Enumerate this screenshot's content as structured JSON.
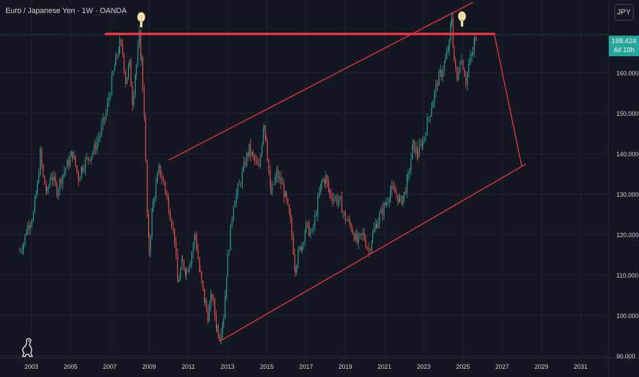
{
  "header": {
    "title": "Euro / Japanese Yen · 1W · OANDA"
  },
  "toolbar": {
    "currency_label": "JPY"
  },
  "price_badge": {
    "price": "169.424",
    "countdown": "4d 10h"
  },
  "colors": {
    "background": "#131722",
    "up": "#26a69a",
    "down": "#ef5350",
    "drawing": "#f23645",
    "grid": "#1f2330",
    "text": "#d1d4dc"
  },
  "icons": {
    "markers": "hand-pointing-down-icon",
    "logo": "dino-logo-icon"
  },
  "chart_data": {
    "type": "candlestick",
    "symbol": "Euro / Japanese Yen",
    "interval": "1W",
    "exchange": "OANDA",
    "last_price": 169.424,
    "y_ticks": [
      "90.000",
      "100.000",
      "110.000",
      "120.000",
      "130.000",
      "140.000",
      "150.000",
      "160.000"
    ],
    "x_ticks": [
      "2003",
      "2005",
      "2007",
      "2009",
      "2011",
      "2013",
      "2015",
      "2017",
      "2019",
      "2021",
      "2023",
      "2025",
      "2027",
      "2029",
      "2031"
    ],
    "ylim": [
      89.5,
      178
    ],
    "xlim": [
      2001.4,
      2032.4
    ],
    "grid": true,
    "price_path": [
      [
        2002.4,
        116
      ],
      [
        2002.6,
        118
      ],
      [
        2002.8,
        122
      ],
      [
        2003.1,
        125
      ],
      [
        2003.3,
        132
      ],
      [
        2003.45,
        140
      ],
      [
        2003.6,
        134
      ],
      [
        2003.8,
        130
      ],
      [
        2004.0,
        135
      ],
      [
        2004.3,
        131
      ],
      [
        2004.6,
        135
      ],
      [
        2004.9,
        138
      ],
      [
        2005.1,
        140
      ],
      [
        2005.4,
        134
      ],
      [
        2005.6,
        137
      ],
      [
        2005.9,
        139
      ],
      [
        2006.2,
        141
      ],
      [
        2006.5,
        145
      ],
      [
        2006.8,
        150
      ],
      [
        2007.1,
        158
      ],
      [
        2007.3,
        163
      ],
      [
        2007.5,
        167
      ],
      [
        2007.65,
        165
      ],
      [
        2007.8,
        158
      ],
      [
        2008.0,
        162
      ],
      [
        2008.15,
        153
      ],
      [
        2008.35,
        162
      ],
      [
        2008.5,
        169
      ],
      [
        2008.6,
        163
      ],
      [
        2008.75,
        150
      ],
      [
        2008.9,
        125
      ],
      [
        2009.0,
        116
      ],
      [
        2009.2,
        128
      ],
      [
        2009.5,
        136
      ],
      [
        2009.75,
        133
      ],
      [
        2010.0,
        127
      ],
      [
        2010.3,
        119
      ],
      [
        2010.45,
        108
      ],
      [
        2010.7,
        113
      ],
      [
        2010.9,
        111
      ],
      [
        2011.1,
        114
      ],
      [
        2011.35,
        120
      ],
      [
        2011.6,
        110
      ],
      [
        2011.85,
        103
      ],
      [
        2012.0,
        100
      ],
      [
        2012.2,
        105
      ],
      [
        2012.45,
        97
      ],
      [
        2012.6,
        95
      ],
      [
        2012.8,
        100
      ],
      [
        2013.0,
        114
      ],
      [
        2013.3,
        128
      ],
      [
        2013.6,
        132
      ],
      [
        2013.9,
        138
      ],
      [
        2014.1,
        141
      ],
      [
        2014.3,
        139
      ],
      [
        2014.6,
        136
      ],
      [
        2014.85,
        148
      ],
      [
        2014.95,
        144
      ],
      [
        2015.2,
        130
      ],
      [
        2015.5,
        135
      ],
      [
        2015.8,
        132
      ],
      [
        2016.0,
        128
      ],
      [
        2016.2,
        123
      ],
      [
        2016.45,
        112
      ],
      [
        2016.6,
        115
      ],
      [
        2016.8,
        118
      ],
      [
        2017.0,
        122
      ],
      [
        2017.3,
        120
      ],
      [
        2017.6,
        128
      ],
      [
        2017.8,
        133
      ],
      [
        2018.0,
        134
      ],
      [
        2018.2,
        130
      ],
      [
        2018.5,
        129
      ],
      [
        2018.75,
        128
      ],
      [
        2019.0,
        124
      ],
      [
        2019.3,
        122
      ],
      [
        2019.6,
        118
      ],
      [
        2019.9,
        120
      ],
      [
        2020.2,
        116
      ],
      [
        2020.4,
        120
      ],
      [
        2020.6,
        123
      ],
      [
        2020.9,
        126
      ],
      [
        2021.1,
        128
      ],
      [
        2021.3,
        131
      ],
      [
        2021.6,
        130
      ],
      [
        2021.8,
        128
      ],
      [
        2022.0,
        130
      ],
      [
        2022.2,
        134
      ],
      [
        2022.45,
        142
      ],
      [
        2022.7,
        140
      ],
      [
        2022.95,
        143
      ],
      [
        2023.1,
        146
      ],
      [
        2023.4,
        152
      ],
      [
        2023.7,
        158
      ],
      [
        2023.9,
        160
      ],
      [
        2024.1,
        163
      ],
      [
        2024.3,
        167
      ],
      [
        2024.42,
        174
      ],
      [
        2024.55,
        163
      ],
      [
        2024.7,
        158
      ],
      [
        2024.85,
        164
      ],
      [
        2025.0,
        162
      ],
      [
        2025.15,
        158
      ],
      [
        2025.3,
        162
      ],
      [
        2025.5,
        165
      ],
      [
        2025.6,
        168
      ],
      [
        2025.68,
        169.4
      ]
    ],
    "drawings": {
      "horizontal_resistance": {
        "from": [
          2006.8,
          169.6
        ],
        "to": [
          2026.6,
          169.6
        ]
      },
      "channel_upper": {
        "from": [
          2010.0,
          138.4
        ],
        "to": [
          2025.5,
          177.4
        ]
      },
      "channel_lower": {
        "from": [
          2012.6,
          93.6
        ],
        "to": [
          2028.2,
          137.4
        ]
      },
      "projection": {
        "from": [
          2026.6,
          169.5
        ],
        "to": [
          2028.0,
          136.8
        ]
      },
      "markers": [
        {
          "x": 2008.6,
          "y": 173.6
        },
        {
          "x": 2024.95,
          "y": 173.8
        }
      ]
    }
  }
}
